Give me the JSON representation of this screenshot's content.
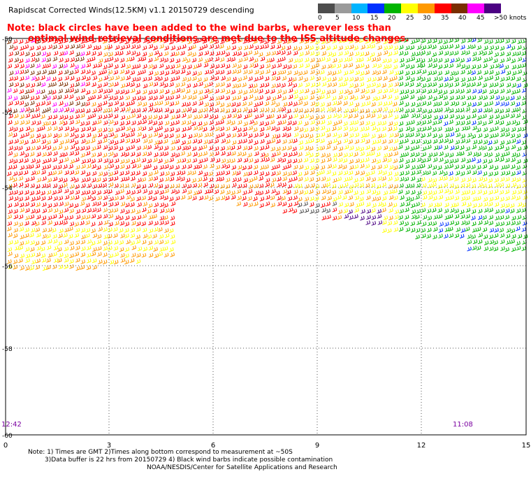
{
  "title": "Rapidscat Corrected Winds(12.5KM) v1.1 20150729 descending",
  "note_red": {
    "line1": "Note: black circles have been added to the wind barbs, wherever less than",
    "line2": "optimal wind retrieval conditions are met due to the ISS altitude changes."
  },
  "legend": {
    "labels": [
      "0",
      "5",
      "10",
      "15",
      "20",
      "25",
      "30",
      "35",
      "40",
      "45",
      ">50 knots"
    ],
    "colors": [
      "#4d4d4d",
      "#9a9a9a",
      "#00b4ff",
      "#0030ff",
      "#00b400",
      "#ffff00",
      "#ff9900",
      "#ff0000",
      "#7a2d00",
      "#ff00ff",
      "#4b0082"
    ]
  },
  "map": {
    "x_ticks": [
      "0",
      "3",
      "6",
      "9",
      "12",
      "15"
    ],
    "y_ticks": [
      "-50",
      "-52",
      "-54",
      "-56",
      "-58",
      "-60"
    ],
    "time_left": "12:42",
    "time_right": "11:08"
  },
  "footer": {
    "line1": "Note: 1) Times are GMT 2)Times along bottom correspond to measurement at ~50S",
    "line2": "3)Data buffer is 22 hrs from 20150729 4) Black wind barbs indicate possible contamination",
    "line3": "NOAA/NESDIS/Center for Satellite Applications and Research"
  }
}
